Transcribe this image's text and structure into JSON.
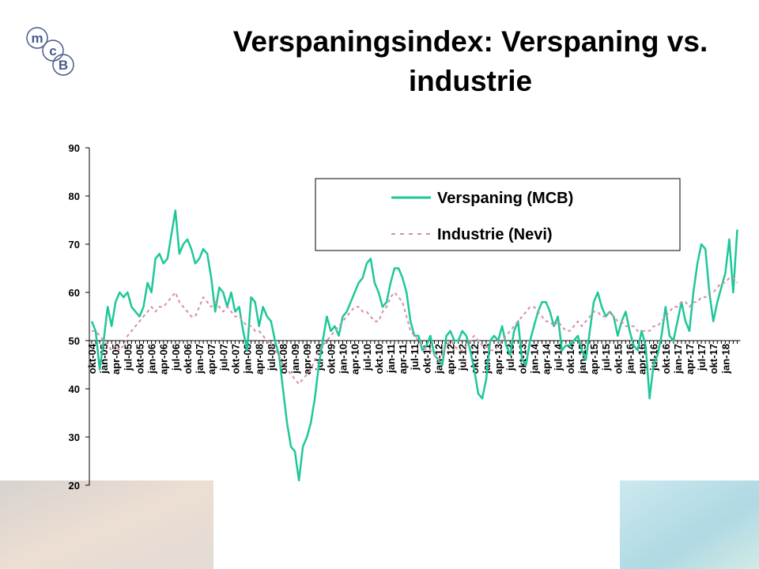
{
  "logo": [
    "m",
    "c",
    "B"
  ],
  "chart_data": {
    "type": "line",
    "title": "Verspaningsindex: Verspaning vs. industrie",
    "categories": [
      "okt-04",
      null,
      null,
      "jan-05",
      null,
      null,
      "apr-05",
      null,
      null,
      "jul-05",
      null,
      null,
      "okt-05",
      null,
      null,
      "jan-06",
      null,
      null,
      "apr-06",
      null,
      null,
      "jul-06",
      null,
      null,
      "okt-06",
      null,
      null,
      "jan-07",
      null,
      null,
      "apr-07",
      null,
      null,
      "jul-07",
      null,
      null,
      "okt-07",
      null,
      null,
      "jan-08",
      null,
      null,
      "apr-08",
      null,
      null,
      "jul-08",
      null,
      null,
      "okt-08",
      null,
      null,
      "jan-09",
      null,
      null,
      "apr-09",
      null,
      null,
      "jul-09",
      null,
      null,
      "okt-09",
      null,
      null,
      "jan-10",
      null,
      null,
      "apr-10",
      null,
      null,
      "jul-10",
      null,
      null,
      "okt-10",
      null,
      null,
      "jan-11",
      null,
      null,
      "apr-11",
      null,
      null,
      "jul-11",
      null,
      null,
      "okt-11",
      null,
      null,
      "jan-12",
      null,
      null,
      "apr-12",
      null,
      null,
      "jul-12",
      null,
      null,
      "okt-12",
      null,
      null,
      "jan-13",
      null,
      null,
      "apr-13",
      null,
      null,
      "jul-13",
      null,
      null,
      "okt-13",
      null,
      null,
      "jan-14",
      null,
      null,
      "apr-14",
      null,
      null,
      "jul-14",
      null,
      null,
      "okt-14",
      null,
      null,
      "jan-15",
      null,
      null,
      "apr-15",
      null,
      null,
      "jul-15",
      null,
      null,
      "okt-15",
      null,
      null,
      "jan-16",
      null,
      null,
      "apr-16",
      null,
      null,
      "jul-16",
      null,
      null,
      "okt-16",
      null,
      null,
      "jan-17",
      null,
      null,
      "apr-17",
      null,
      null,
      "jul-17",
      null,
      null,
      "okt-17",
      null,
      null,
      "jan-18",
      null,
      null,
      null
    ],
    "series": [
      {
        "name": "Verspaning (MCB)",
        "color": "#1ec79a",
        "dashed": false,
        "values": [
          54,
          52,
          44,
          50,
          57,
          53,
          58,
          60,
          59,
          60,
          57,
          56,
          55,
          57,
          62,
          60,
          67,
          68,
          66,
          67,
          72,
          77,
          68,
          70,
          71,
          69,
          66,
          67,
          69,
          68,
          63,
          56,
          61,
          60,
          57,
          60,
          56,
          57,
          52,
          48,
          59,
          58,
          53,
          57,
          55,
          54,
          50,
          47,
          40,
          33,
          28,
          27,
          21,
          28,
          30,
          33,
          38,
          45,
          50,
          55,
          52,
          53,
          51,
          55,
          56,
          58,
          60,
          62,
          63,
          66,
          67,
          62,
          60,
          57,
          58,
          62,
          65,
          65,
          63,
          60,
          54,
          51,
          51,
          48,
          49,
          51,
          47,
          46,
          45,
          51,
          52,
          50,
          50,
          52,
          51,
          48,
          44,
          39,
          38,
          42,
          50,
          51,
          50,
          53,
          49,
          47,
          52,
          54,
          46,
          45,
          50,
          53,
          56,
          58,
          58,
          56,
          53,
          55,
          48,
          49,
          49,
          50,
          51,
          48,
          46,
          52,
          58,
          60,
          57,
          55,
          56,
          55,
          51,
          54,
          56,
          52,
          49,
          48,
          52,
          49,
          38,
          45,
          47,
          51,
          57,
          51,
          50,
          54,
          58,
          54,
          52,
          60,
          66,
          70,
          69,
          60,
          54,
          58,
          61,
          64,
          71,
          60,
          73
        ]
      },
      {
        "name": "Industrie (Nevi)",
        "color": "#d58fa8",
        "dashed": true,
        "values": [
          52,
          52,
          51,
          50,
          49,
          48,
          49,
          48,
          49,
          51,
          52,
          53,
          54,
          55,
          56,
          57,
          56,
          57,
          57,
          58,
          59,
          60,
          58,
          57,
          56,
          55,
          55,
          57,
          59,
          58,
          57,
          58,
          57,
          56,
          57,
          56,
          55,
          55,
          54,
          53,
          53,
          52,
          52,
          51,
          50,
          49,
          48,
          47,
          45,
          44,
          43,
          42,
          41,
          42,
          43,
          44,
          46,
          48,
          49,
          50,
          51,
          52,
          53,
          54,
          55,
          56,
          57,
          57,
          56,
          56,
          55,
          54,
          54,
          56,
          57,
          59,
          60,
          59,
          58,
          55,
          52,
          51,
          50,
          49,
          48,
          48,
          47,
          46,
          47,
          49,
          50,
          49,
          48,
          48,
          49,
          50,
          51,
          50,
          49,
          49,
          48,
          48,
          49,
          50,
          51,
          52,
          53,
          54,
          55,
          56,
          57,
          57,
          56,
          55,
          54,
          54,
          53,
          54,
          53,
          52,
          52,
          53,
          54,
          53,
          54,
          55,
          56,
          56,
          55,
          55,
          56,
          55,
          54,
          54,
          53,
          53,
          53,
          52,
          52,
          52,
          52,
          53,
          53,
          54,
          55,
          56,
          57,
          57,
          58,
          58,
          57,
          58,
          58,
          59,
          59,
          60,
          60,
          61,
          62,
          62,
          63,
          63,
          62
        ]
      }
    ],
    "ylim": [
      20,
      90
    ],
    "yticks": [
      20,
      30,
      40,
      50,
      60,
      70,
      80,
      90
    ],
    "x_axis_at": 50,
    "legend": "top-right"
  }
}
